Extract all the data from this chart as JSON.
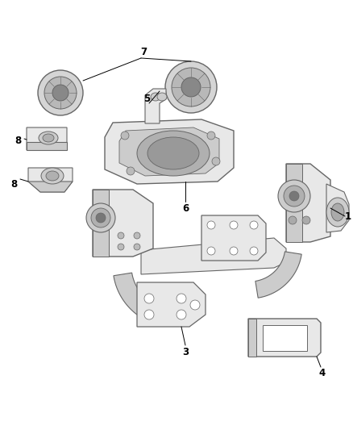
{
  "bg_color": "#ffffff",
  "line_color": "#666666",
  "fig_width": 4.38,
  "fig_height": 5.33,
  "dpi": 100,
  "label_fontsize": 8.5,
  "label_color": "#000000",
  "part_fill_light": "#e8e8e8",
  "part_fill_mid": "#cccccc",
  "part_fill_dark": "#b0b0b0",
  "part_fill_darkest": "#888888",
  "leader_lw": 0.7
}
